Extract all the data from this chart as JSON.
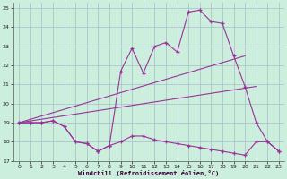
{
  "xlabel": "Windchill (Refroidissement éolien,°C)",
  "background_color": "#cceedd",
  "grid_color": "#aabbcc",
  "line_color": "#993399",
  "xlim": [
    -0.5,
    23.5
  ],
  "ylim": [
    17,
    25.3
  ],
  "yticks": [
    17,
    18,
    19,
    20,
    21,
    22,
    23,
    24,
    25
  ],
  "xticks": [
    0,
    1,
    2,
    3,
    4,
    5,
    6,
    7,
    8,
    9,
    10,
    11,
    12,
    13,
    14,
    15,
    16,
    17,
    18,
    19,
    20,
    21,
    22,
    23
  ],
  "series": [
    {
      "x": [
        0,
        1,
        2,
        3,
        4,
        5,
        6,
        7,
        8,
        9,
        10,
        11,
        12,
        13,
        14,
        15,
        16,
        17,
        18,
        19,
        20,
        21,
        22,
        23
      ],
      "y": [
        19,
        19,
        19,
        19.1,
        18.8,
        18.0,
        17.9,
        17.5,
        17.8,
        18.0,
        18.3,
        18.3,
        18.1,
        18.0,
        17.9,
        17.8,
        17.7,
        17.6,
        17.5,
        17.4,
        17.3,
        18.0,
        18.0,
        17.5
      ]
    },
    {
      "x": [
        0,
        1,
        2,
        3,
        4,
        5,
        6,
        7,
        8,
        9,
        10,
        11,
        12,
        13,
        14,
        15,
        16,
        17,
        18,
        19,
        20,
        21,
        22,
        23
      ],
      "y": [
        19,
        19,
        19,
        19.1,
        18.8,
        18.0,
        17.9,
        17.5,
        17.8,
        21.7,
        22.9,
        21.6,
        23.0,
        23.2,
        22.7,
        24.8,
        24.9,
        24.3,
        24.2,
        22.5,
        20.9,
        19.0,
        18.0,
        17.5
      ]
    },
    {
      "x": [
        0,
        20
      ],
      "y": [
        19,
        22.5
      ]
    },
    {
      "x": [
        0,
        21
      ],
      "y": [
        19,
        20.9
      ]
    }
  ]
}
